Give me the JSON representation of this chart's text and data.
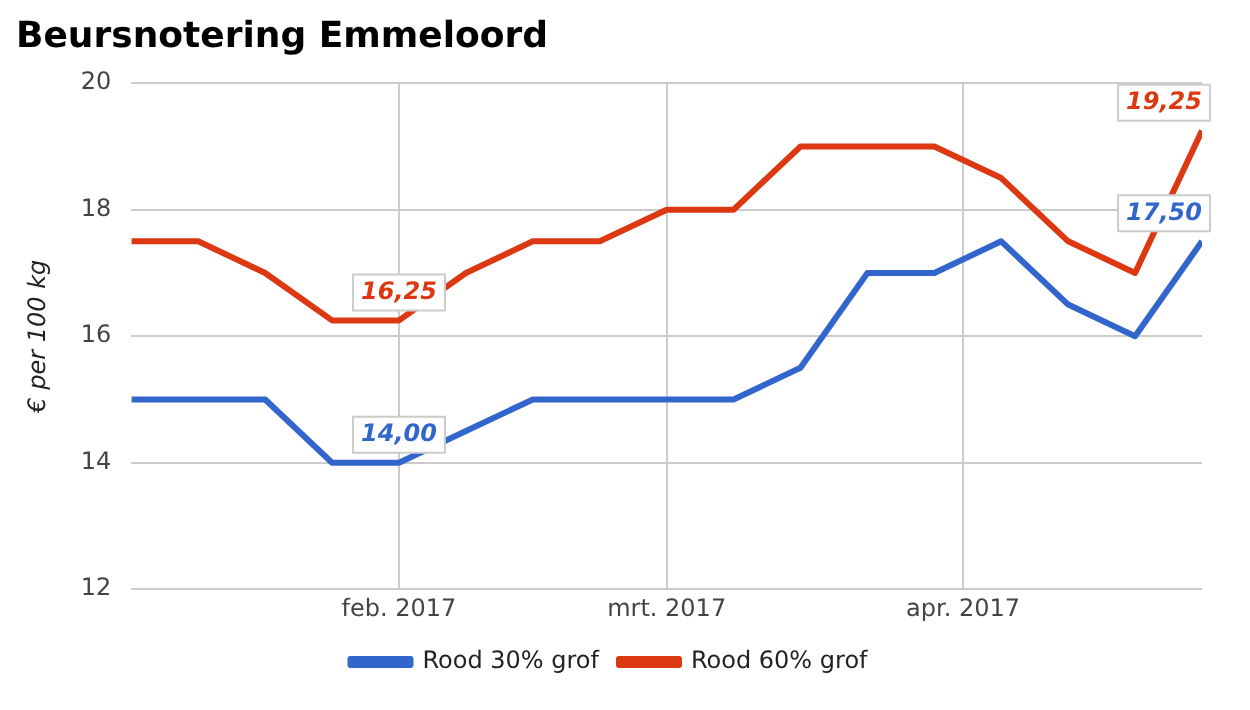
{
  "chart_data": {
    "type": "line",
    "title": "Beursnotering Emmeloord",
    "ylabel": "€ per 100 kg",
    "x": [
      "2017-01-04",
      "2017-01-11",
      "2017-01-18",
      "2017-01-25",
      "2017-02-01",
      "2017-02-08",
      "2017-02-15",
      "2017-02-22",
      "2017-03-01",
      "2017-03-08",
      "2017-03-15",
      "2017-03-22",
      "2017-03-29",
      "2017-04-05",
      "2017-04-12",
      "2017-04-19",
      "2017-04-26"
    ],
    "series": [
      {
        "name": "Rood 30% grof",
        "color": "#3366cc",
        "values": [
          15,
          15,
          15,
          14,
          14,
          14.5,
          15,
          15,
          15,
          15,
          15.5,
          17,
          17,
          17.5,
          16.5,
          16,
          17.5
        ],
        "value_labels": [
          null,
          null,
          null,
          null,
          "14,00",
          null,
          null,
          null,
          null,
          null,
          null,
          null,
          null,
          null,
          null,
          null,
          "17,50"
        ]
      },
      {
        "name": "Rood 60% grof",
        "color": "#dc3912",
        "values": [
          17.5,
          17.5,
          17,
          16.25,
          16.25,
          17,
          17.5,
          17.5,
          18,
          18,
          19,
          19,
          19,
          18.5,
          17.5,
          17,
          19.25
        ],
        "value_labels": [
          null,
          null,
          null,
          null,
          "16,25",
          null,
          null,
          null,
          null,
          null,
          null,
          null,
          null,
          null,
          null,
          null,
          "19,25"
        ]
      }
    ],
    "xlim": [
      "2017-01-04",
      "2017-04-26"
    ],
    "xticks": [
      {
        "value": "2017-02-01",
        "label": "feb. 2017"
      },
      {
        "value": "2017-03-01",
        "label": "mrt. 2017"
      },
      {
        "value": "2017-04-01",
        "label": "apr. 2017"
      }
    ],
    "ylim": [
      12,
      20
    ],
    "yticks": [
      12,
      14,
      16,
      18,
      20
    ],
    "grid": true,
    "legend": "bottom",
    "marker": "none",
    "line_style": "solid"
  }
}
